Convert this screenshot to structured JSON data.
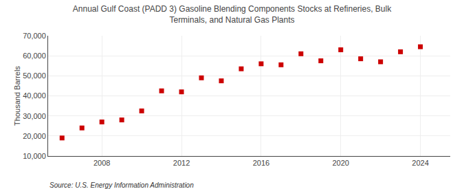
{
  "chart_data": {
    "type": "scatter",
    "title": "Annual Gulf Coast (PADD 3) Gasoline Blending Components Stocks at Refineries, Bulk\nTerminals, and Natural Gas Plants",
    "ylabel": "Thousand Barrels",
    "annotations": [
      "Source: U.S. Energy Information Administration"
    ],
    "x": [
      2006,
      2007,
      2008,
      2009,
      2010,
      2011,
      2012,
      2013,
      2014,
      2015,
      2016,
      2017,
      2018,
      2019,
      2020,
      2021,
      2022,
      2023,
      2024
    ],
    "values": [
      19000,
      24000,
      27000,
      28000,
      32500,
      42500,
      42000,
      49000,
      47500,
      53500,
      56000,
      55500,
      61000,
      57500,
      63000,
      58500,
      57000,
      62000,
      64500
    ],
    "color": "#cc0000",
    "marker": "square",
    "xlim": [
      2005.3,
      2025.5
    ],
    "xticks": [
      2008,
      2012,
      2016,
      2020,
      2024
    ],
    "ylim": [
      10000,
      70000
    ],
    "yticks": [
      {
        "value": 10000,
        "label": "10,000"
      },
      {
        "value": 20000,
        "label": "20,000"
      },
      {
        "value": 30000,
        "label": "30,000"
      },
      {
        "value": 40000,
        "label": "40,000"
      },
      {
        "value": 50000,
        "label": "50,000"
      },
      {
        "value": 60000,
        "label": "60,000"
      },
      {
        "value": 70000,
        "label": "70,000"
      }
    ],
    "grid": true
  }
}
